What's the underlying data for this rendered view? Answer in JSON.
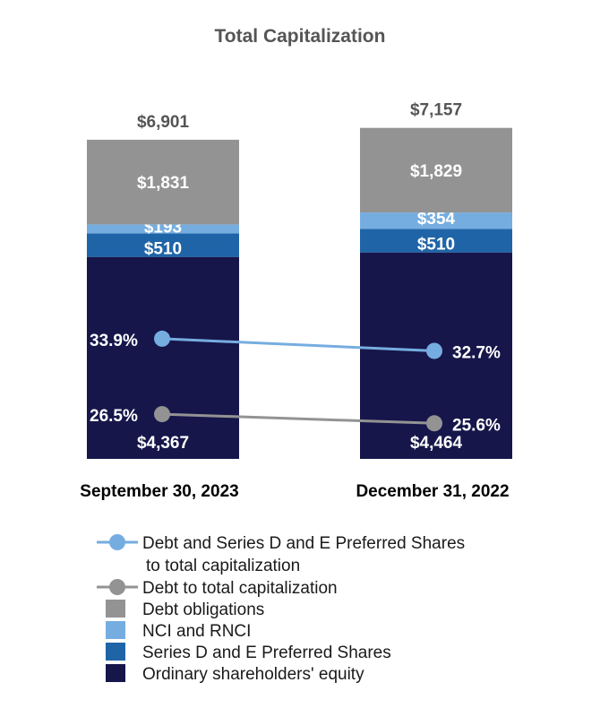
{
  "chart_data": {
    "type": "bar",
    "stacked": true,
    "title": "Total Capitalization",
    "categories": [
      "September 30, 2023",
      "December 31, 2022"
    ],
    "totals": [
      6901,
      7157
    ],
    "total_labels": [
      "$6,901",
      "$7,157"
    ],
    "series": [
      {
        "name": "Ordinary shareholders' equity",
        "color": "#16164b",
        "values": [
          4367,
          4464
        ],
        "labels": [
          "$4,367",
          "$4,464"
        ]
      },
      {
        "name": "Series D and E Preferred Shares",
        "color": "#1f64a7",
        "values": [
          510,
          510
        ],
        "labels": [
          "$510",
          "$510"
        ]
      },
      {
        "name": "NCI and RNCI",
        "color": "#76ade0",
        "values": [
          193,
          354
        ],
        "labels": [
          "$193",
          "$354"
        ]
      },
      {
        "name": "Debt obligations",
        "color": "#939393",
        "values": [
          1831,
          1829
        ],
        "labels": [
          "$1,831",
          "$1,829"
        ]
      }
    ],
    "lines": [
      {
        "name": "Debt and Series D and E Preferred Shares",
        "name_line2": "to total capitalization",
        "color": "#76ade0",
        "values": [
          33.9,
          32.7
        ],
        "labels": [
          "33.9%",
          "32.7%"
        ]
      },
      {
        "name": "Debt to total capitalization",
        "color": "#939393",
        "values": [
          26.5,
          25.6
        ],
        "labels": [
          "26.5%",
          "25.6%"
        ]
      }
    ],
    "legend_position": "bottom",
    "xlabel": "",
    "ylabel": ""
  }
}
